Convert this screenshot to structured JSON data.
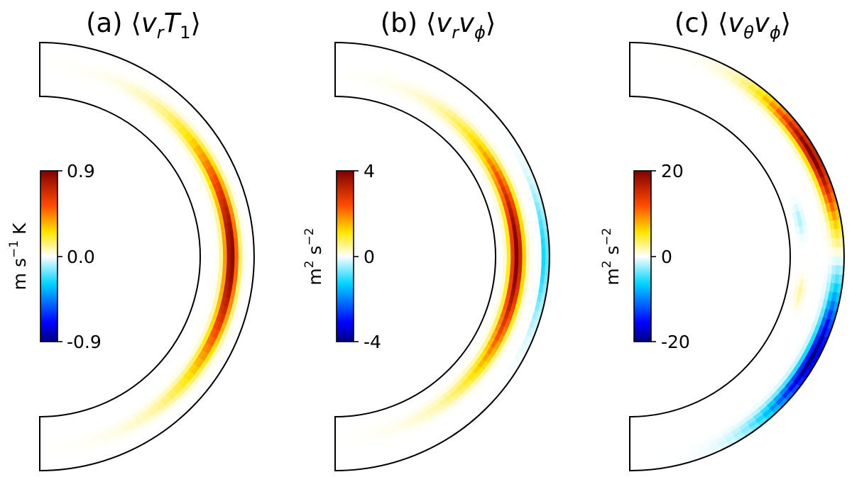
{
  "chart_data": [
    {
      "type": "heatmap",
      "panel": "(a)",
      "title_prefix": "(a) ⟨",
      "title_suffix": "⟩",
      "title_parts": [
        {
          "text": "v",
          "italic": true
        },
        {
          "text": "r",
          "italic": true,
          "sub": true
        },
        {
          "text": "T",
          "italic": true
        },
        {
          "text": "1",
          "sub": true
        }
      ],
      "colorbar": {
        "ticks": [
          "0.9",
          "0.0",
          "-0.9"
        ],
        "vmin": -0.9,
        "vmax": 0.9,
        "label_parts": [
          {
            "text": "m s"
          },
          {
            "text": "−1",
            "sup": true
          },
          {
            "text": " K"
          }
        ]
      },
      "features": [
        {
          "sign": "positive",
          "colat_center_deg": 90,
          "colat_halfwidth_deg": 45,
          "radial_center": 0.58,
          "radial_width": 0.3,
          "peak": 0.9
        }
      ]
    },
    {
      "type": "heatmap",
      "panel": "(b)",
      "title_prefix": "(b) ⟨",
      "title_suffix": "⟩",
      "title_parts": [
        {
          "text": "v",
          "italic": true
        },
        {
          "text": "r",
          "italic": true,
          "sub": true
        },
        {
          "text": "v",
          "italic": true
        },
        {
          "text": "ϕ",
          "italic": true,
          "sub": true
        }
      ],
      "colorbar": {
        "ticks": [
          "4",
          "0",
          "-4"
        ],
        "vmin": -4,
        "vmax": 4,
        "label_parts": [
          {
            "text": "m"
          },
          {
            "text": "2",
            "sup": true
          },
          {
            "text": " s"
          },
          {
            "text": "−2",
            "sup": true
          }
        ]
      },
      "features": [
        {
          "sign": "positive",
          "colat_center_deg": 90,
          "colat_halfwidth_deg": 46,
          "radial_center": 0.4,
          "radial_width": 0.3,
          "peak": 4
        },
        {
          "sign": "negative",
          "colat_center_deg": 90,
          "colat_halfwidth_deg": 22,
          "radial_center": 0.92,
          "radial_width": 0.13,
          "peak": -1.5
        }
      ]
    },
    {
      "type": "heatmap",
      "panel": "(c)",
      "title_prefix": "(c) ⟨",
      "title_suffix": "⟩",
      "title_parts": [
        {
          "text": "v",
          "italic": true
        },
        {
          "text": "θ",
          "italic": true,
          "sub": true
        },
        {
          "text": "v",
          "italic": true
        },
        {
          "text": "ϕ",
          "italic": true,
          "sub": true
        }
      ],
      "colorbar": {
        "ticks": [
          "20",
          "0",
          "-20"
        ],
        "vmin": -20,
        "vmax": 20,
        "label_parts": [
          {
            "text": "m"
          },
          {
            "text": "2",
            "sup": true
          },
          {
            "text": " s"
          },
          {
            "text": "−2",
            "sup": true
          }
        ]
      },
      "features": [
        {
          "sign": "positive",
          "colat_center_deg": 61,
          "colat_halfwidth_deg": 25,
          "radial_center": 0.9,
          "radial_width": 0.32,
          "peak": 20
        },
        {
          "sign": "negative",
          "colat_center_deg": 119,
          "colat_halfwidth_deg": 25,
          "radial_center": 0.9,
          "radial_width": 0.32,
          "peak": -20
        },
        {
          "sign": "negative",
          "colat_center_deg": 78,
          "colat_halfwidth_deg": 6,
          "radial_center": 0.25,
          "radial_width": 0.18,
          "peak": -2
        },
        {
          "sign": "positive",
          "colat_center_deg": 102,
          "colat_halfwidth_deg": 6,
          "radial_center": 0.25,
          "radial_width": 0.18,
          "peak": 2
        }
      ]
    }
  ]
}
